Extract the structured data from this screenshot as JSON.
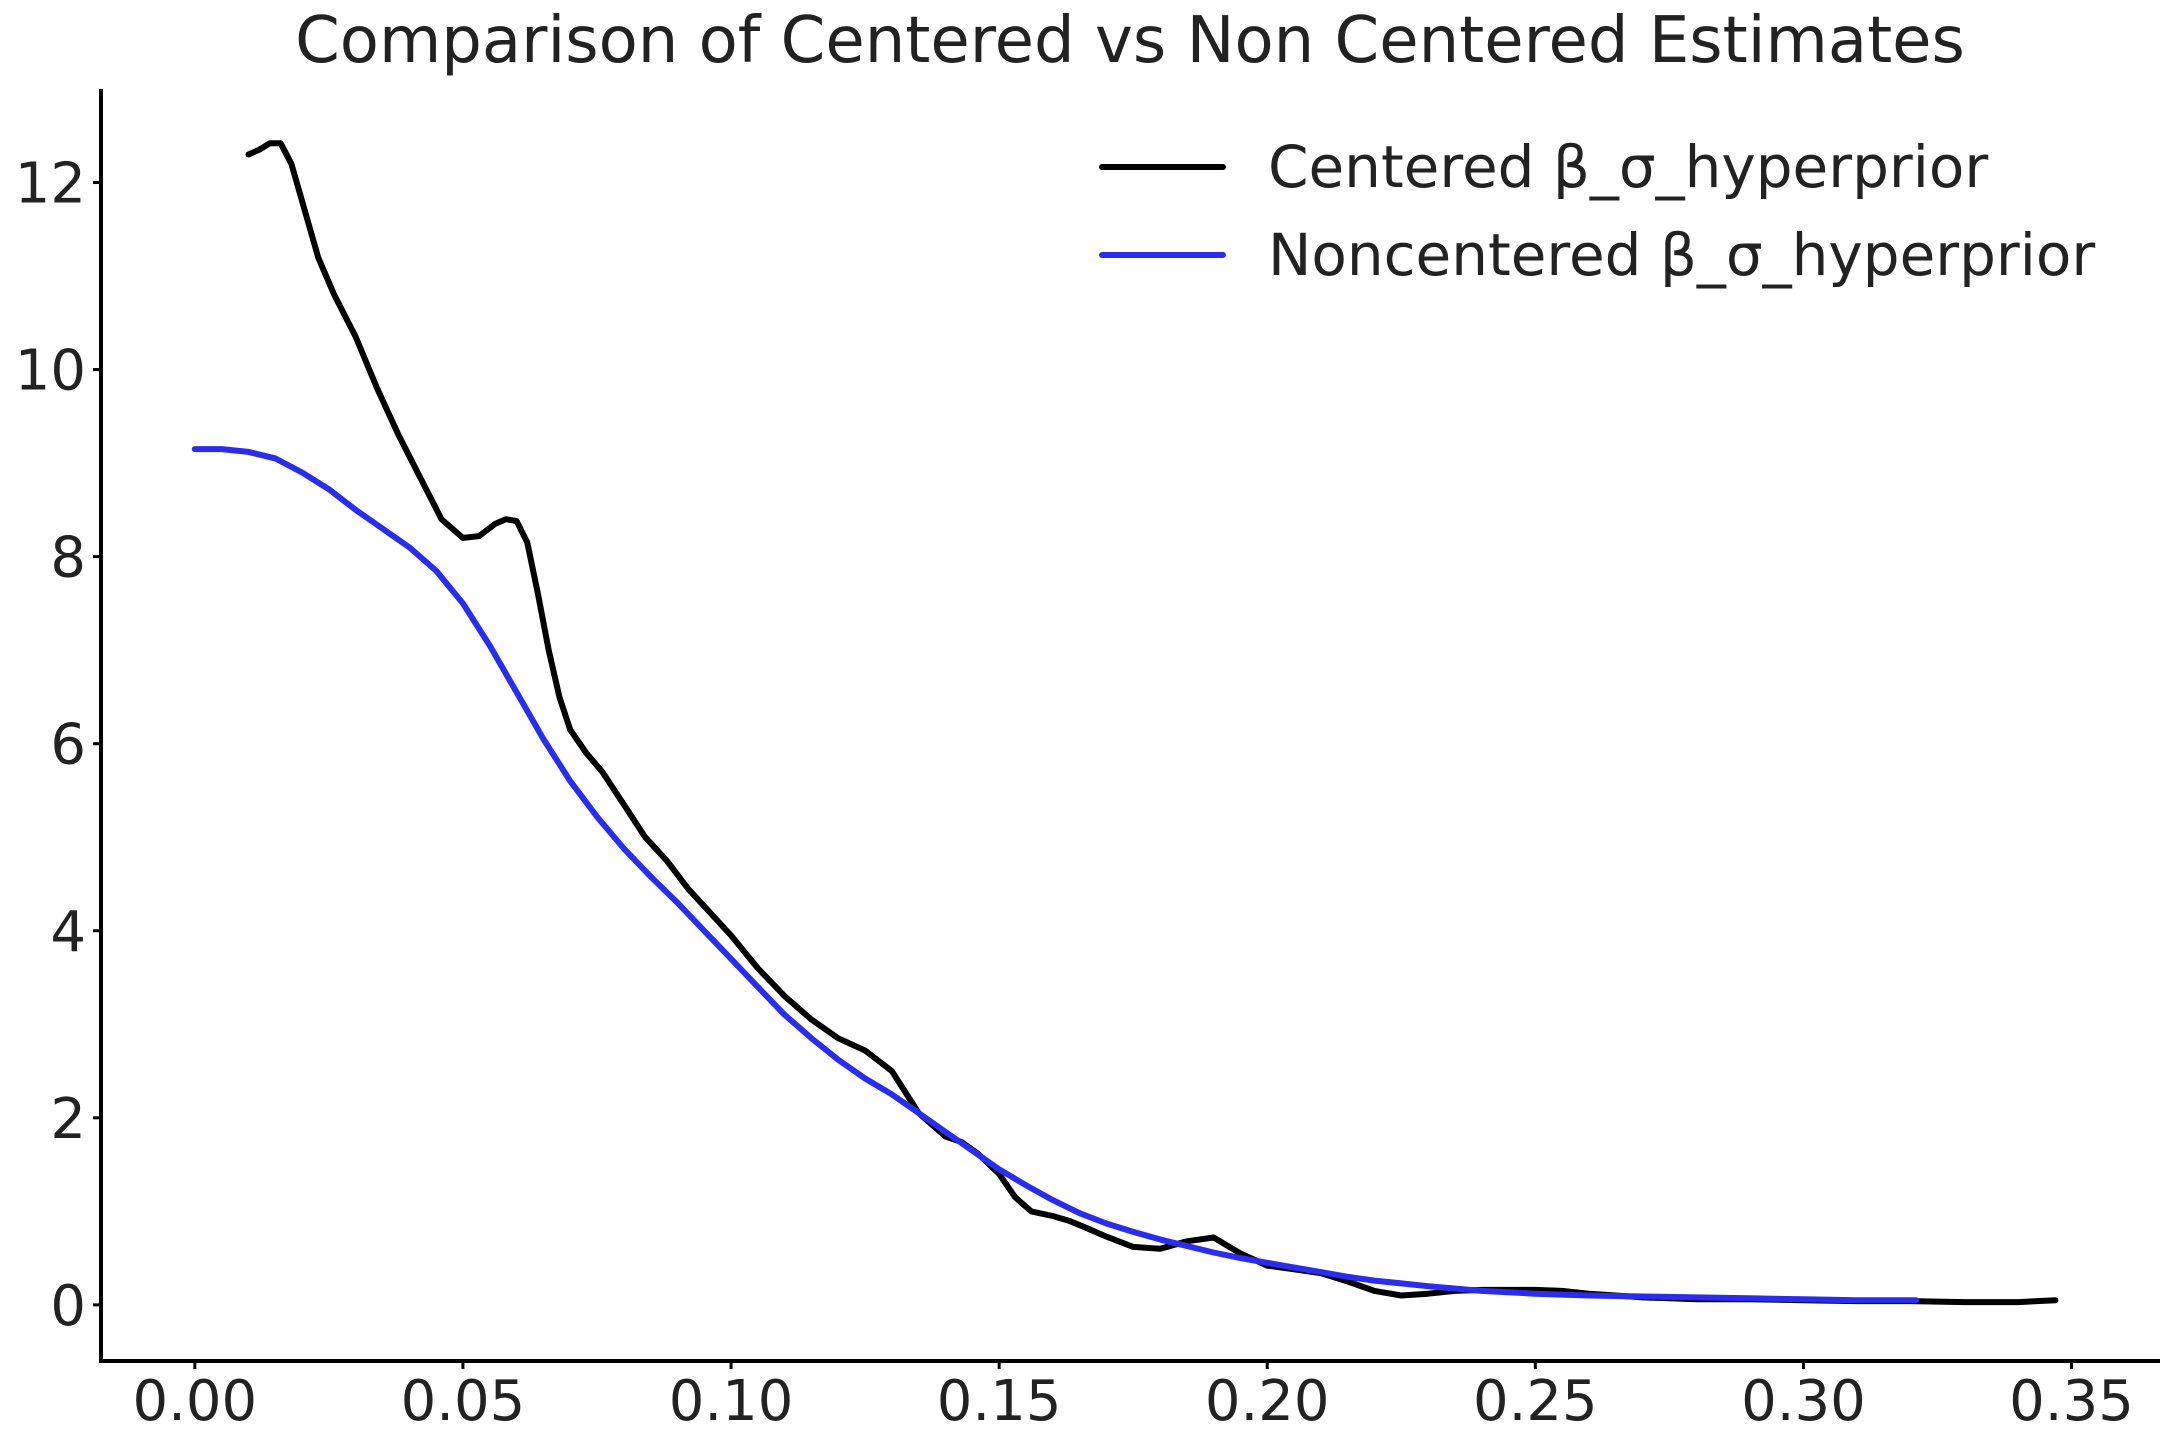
{
  "chart_data": {
    "type": "line",
    "title": "Comparison of Centered vs Non Centered Estimates",
    "xlabel": "",
    "ylabel": "",
    "xlim": [
      -0.0175,
      0.3665
    ],
    "ylim": [
      -0.6,
      13.0
    ],
    "xticks": [
      0.0,
      0.05,
      0.1,
      0.15,
      0.2,
      0.25,
      0.3,
      0.35
    ],
    "xtick_labels": [
      "0.00",
      "0.05",
      "0.10",
      "0.15",
      "0.20",
      "0.25",
      "0.30",
      "0.35"
    ],
    "yticks": [
      0,
      2,
      4,
      6,
      8,
      10,
      12
    ],
    "ytick_labels": [
      "0",
      "2",
      "4",
      "6",
      "8",
      "10",
      "12"
    ],
    "grid": false,
    "legend_position": "top-right",
    "series": [
      {
        "name": "Centered β_σ_hyperprior",
        "color": "#000000",
        "x": [
          0.01,
          0.012,
          0.014,
          0.016,
          0.018,
          0.02,
          0.023,
          0.026,
          0.03,
          0.034,
          0.038,
          0.042,
          0.046,
          0.05,
          0.053,
          0.056,
          0.058,
          0.06,
          0.062,
          0.064,
          0.066,
          0.068,
          0.07,
          0.073,
          0.076,
          0.08,
          0.084,
          0.088,
          0.092,
          0.096,
          0.1,
          0.105,
          0.11,
          0.115,
          0.12,
          0.125,
          0.13,
          0.135,
          0.14,
          0.143,
          0.146,
          0.15,
          0.153,
          0.156,
          0.16,
          0.163,
          0.166,
          0.17,
          0.175,
          0.18,
          0.185,
          0.19,
          0.195,
          0.2,
          0.205,
          0.21,
          0.215,
          0.22,
          0.225,
          0.23,
          0.235,
          0.24,
          0.245,
          0.25,
          0.255,
          0.26,
          0.265,
          0.27,
          0.275,
          0.28,
          0.29,
          0.3,
          0.31,
          0.32,
          0.33,
          0.34,
          0.347
        ],
        "y": [
          12.3,
          12.35,
          12.42,
          12.42,
          12.2,
          11.8,
          11.2,
          10.8,
          10.35,
          9.8,
          9.3,
          8.85,
          8.4,
          8.2,
          8.22,
          8.35,
          8.4,
          8.38,
          8.15,
          7.6,
          7.0,
          6.5,
          6.15,
          5.9,
          5.7,
          5.35,
          5.0,
          4.75,
          4.45,
          4.2,
          3.95,
          3.6,
          3.3,
          3.05,
          2.85,
          2.72,
          2.5,
          2.05,
          1.8,
          1.74,
          1.62,
          1.4,
          1.15,
          1.0,
          0.95,
          0.9,
          0.83,
          0.73,
          0.62,
          0.6,
          0.68,
          0.72,
          0.55,
          0.42,
          0.38,
          0.34,
          0.25,
          0.15,
          0.1,
          0.12,
          0.15,
          0.16,
          0.16,
          0.16,
          0.15,
          0.12,
          0.1,
          0.08,
          0.07,
          0.06,
          0.06,
          0.05,
          0.04,
          0.04,
          0.03,
          0.03,
          0.05
        ]
      },
      {
        "name": "Noncentered β_σ_hyperprior",
        "color": "#2a2eec",
        "x": [
          0.0,
          0.005,
          0.01,
          0.015,
          0.02,
          0.025,
          0.03,
          0.035,
          0.04,
          0.045,
          0.05,
          0.055,
          0.06,
          0.065,
          0.07,
          0.075,
          0.08,
          0.085,
          0.09,
          0.095,
          0.1,
          0.105,
          0.11,
          0.115,
          0.12,
          0.125,
          0.13,
          0.135,
          0.14,
          0.145,
          0.15,
          0.155,
          0.16,
          0.165,
          0.17,
          0.175,
          0.18,
          0.185,
          0.19,
          0.195,
          0.2,
          0.205,
          0.21,
          0.215,
          0.22,
          0.23,
          0.24,
          0.25,
          0.26,
          0.27,
          0.28,
          0.29,
          0.3,
          0.31,
          0.321
        ],
        "y": [
          9.15,
          9.15,
          9.12,
          9.05,
          8.9,
          8.72,
          8.5,
          8.3,
          8.1,
          7.85,
          7.5,
          7.05,
          6.55,
          6.05,
          5.6,
          5.22,
          4.88,
          4.58,
          4.3,
          4.0,
          3.7,
          3.4,
          3.1,
          2.85,
          2.62,
          2.42,
          2.25,
          2.05,
          1.85,
          1.65,
          1.45,
          1.28,
          1.12,
          0.98,
          0.87,
          0.78,
          0.7,
          0.63,
          0.56,
          0.5,
          0.45,
          0.4,
          0.35,
          0.3,
          0.26,
          0.2,
          0.15,
          0.12,
          0.1,
          0.09,
          0.08,
          0.07,
          0.06,
          0.05,
          0.05
        ]
      }
    ]
  }
}
